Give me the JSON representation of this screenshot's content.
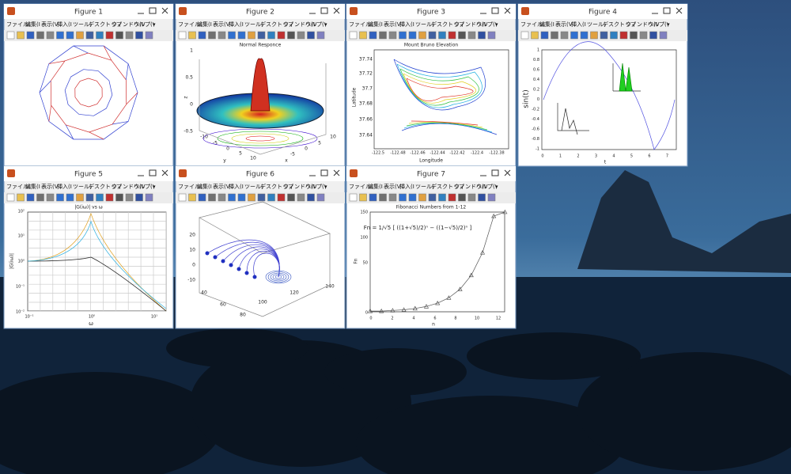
{
  "menu": [
    "ファイル(",
    "編集(I",
    "表示(V",
    "挿入(I",
    "ツール(",
    "デスクトップ",
    "ウィンドウ(V",
    "ヘルプ(\\",
    "▾"
  ],
  "windows": [
    {
      "title": "Figure 1",
      "texts": []
    },
    {
      "title": "Figure 2",
      "texts": [
        "Normal Responce",
        "1",
        "0.5",
        "0",
        "-0.5",
        "z",
        "-10",
        "-5",
        "0",
        "5",
        "10",
        "y",
        "-5",
        "0",
        "5",
        "10",
        "x"
      ]
    },
    {
      "title": "Figure 3",
      "texts": [
        "Mount Bruno Elevation",
        "37.74",
        "37.72",
        "37.7",
        "37.68",
        "37.66",
        "37.64",
        "-122.5",
        "-122.48",
        "-122.46",
        "-122.44",
        "-122.42",
        "-122.4",
        "-122.38",
        "Longitude",
        "Latitude"
      ]
    },
    {
      "title": "Figure 4",
      "texts": [
        "1",
        "0.8",
        "0.6",
        "0.4",
        "0.2",
        "0",
        "-0.2",
        "-0.4",
        "-0.6",
        "-0.8",
        "-1",
        "0",
        "1",
        "2",
        "3",
        "4",
        "5",
        "6",
        "7",
        "sin(t)",
        "t"
      ]
    },
    {
      "title": "Figure 5",
      "texts": [
        "|G(iω)| vs ω",
        "10²",
        "10¹",
        "10⁰",
        "10⁻¹",
        "10⁻²",
        "10⁻¹",
        "10⁰",
        "10¹",
        "ω",
        "|G(iω)|"
      ]
    },
    {
      "title": "Figure 6",
      "texts": [
        "20",
        "10",
        "0",
        "-10",
        "40",
        "60",
        "80",
        "100",
        "120",
        "140"
      ]
    },
    {
      "title": "Figure 7",
      "texts": [
        "Fibonacci Numbers from 1-12",
        "150",
        "100",
        "50",
        "0",
        "0",
        "2",
        "4",
        "6",
        "8",
        "10",
        "12",
        "n",
        "Fn",
        "Fn = 1/√5 [ ((1+√5)/2)ⁿ − ((1−√5)/2)ⁿ ]"
      ]
    }
  ]
}
